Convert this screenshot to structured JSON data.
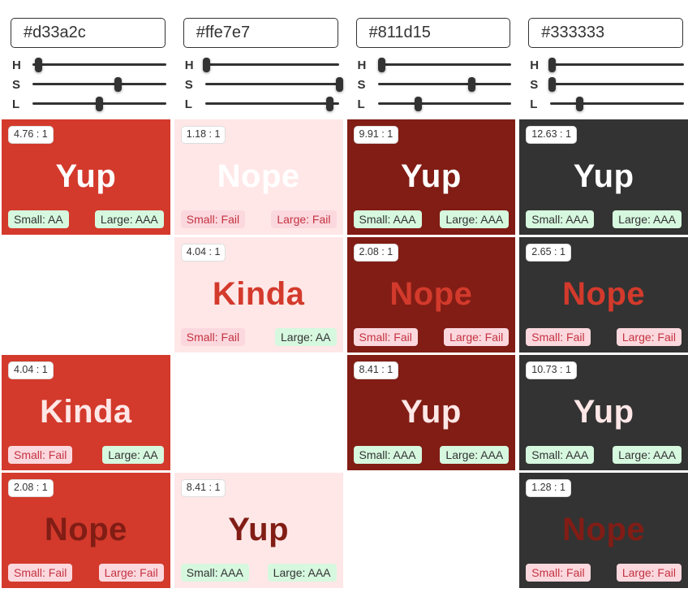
{
  "palette": {
    "red": "#d33a2c",
    "pink": "#ffe7e7",
    "darkred": "#811d15",
    "darkgray": "#333333",
    "white": "#ffffff"
  },
  "badge_colors": {
    "pass_bg": "#d6f8df",
    "pass_text": "#333333",
    "fail_bg": "#fbd8de",
    "fail_text": "#c43240",
    "ratio_bg": "#ffffff",
    "ratio_text": "#333333"
  },
  "slider_labels": [
    "H",
    "S",
    "L"
  ],
  "columns": [
    {
      "hex": "#d33a2c",
      "sliders": {
        "h": 4,
        "s": 64,
        "l": 50
      }
    },
    {
      "hex": "#ffe7e7",
      "sliders": {
        "h": 1,
        "s": 100,
        "l": 93
      }
    },
    {
      "hex": "#811d15",
      "sliders": {
        "h": 3,
        "s": 70,
        "l": 30
      }
    },
    {
      "hex": "#333333",
      "sliders": {
        "h": 1,
        "s": 1,
        "l": 22
      }
    }
  ],
  "grid": {
    "rows": [
      {
        "fg": "white",
        "cells": [
          {
            "bg": "red",
            "ratio": "4.76 : 1",
            "verdict": "Yup",
            "small": "Small: AA",
            "small_pass": true,
            "large": "Large: AAA",
            "large_pass": true
          },
          {
            "bg": "pink",
            "ratio": "1.18 : 1",
            "verdict": "Nope",
            "small": "Small: Fail",
            "small_pass": false,
            "large": "Large: Fail",
            "large_pass": false
          },
          {
            "bg": "darkred",
            "ratio": "9.91 : 1",
            "verdict": "Yup",
            "small": "Small: AAA",
            "small_pass": true,
            "large": "Large: AAA",
            "large_pass": true
          },
          {
            "bg": "darkgray",
            "ratio": "12.63 : 1",
            "verdict": "Yup",
            "small": "Small: AAA",
            "small_pass": true,
            "large": "Large: AAA",
            "large_pass": true
          }
        ]
      },
      {
        "fg": "red",
        "cells": [
          {
            "empty": true
          },
          {
            "bg": "pink",
            "ratio": "4.04 : 1",
            "verdict": "Kinda",
            "small": "Small: Fail",
            "small_pass": false,
            "large": "Large: AA",
            "large_pass": true
          },
          {
            "bg": "darkred",
            "ratio": "2.08 : 1",
            "verdict": "Nope",
            "small": "Small: Fail",
            "small_pass": false,
            "large": "Large: Fail",
            "large_pass": false
          },
          {
            "bg": "darkgray",
            "ratio": "2.65 : 1",
            "verdict": "Nope",
            "small": "Small: Fail",
            "small_pass": false,
            "large": "Large: Fail",
            "large_pass": false
          }
        ]
      },
      {
        "fg": "pink",
        "cells": [
          {
            "bg": "red",
            "ratio": "4.04 : 1",
            "verdict": "Kinda",
            "small": "Small: Fail",
            "small_pass": false,
            "large": "Large: AA",
            "large_pass": true
          },
          {
            "empty": true
          },
          {
            "bg": "darkred",
            "ratio": "8.41 : 1",
            "verdict": "Yup",
            "small": "Small: AAA",
            "small_pass": true,
            "large": "Large: AAA",
            "large_pass": true
          },
          {
            "bg": "darkgray",
            "ratio": "10.73 : 1",
            "verdict": "Yup",
            "small": "Small: AAA",
            "small_pass": true,
            "large": "Large: AAA",
            "large_pass": true
          }
        ]
      },
      {
        "fg": "darkred",
        "cells": [
          {
            "bg": "red",
            "ratio": "2.08 : 1",
            "verdict": "Nope",
            "small": "Small: Fail",
            "small_pass": false,
            "large": "Large: Fail",
            "large_pass": false
          },
          {
            "bg": "pink",
            "ratio": "8.41 : 1",
            "verdict": "Yup",
            "small": "Small: AAA",
            "small_pass": true,
            "large": "Large: AAA",
            "large_pass": true
          },
          {
            "empty": true
          },
          {
            "bg": "darkgray",
            "ratio": "1.28 : 1",
            "verdict": "Nope",
            "small": "Small: Fail",
            "small_pass": false,
            "large": "Large: Fail",
            "large_pass": false
          }
        ]
      }
    ]
  }
}
